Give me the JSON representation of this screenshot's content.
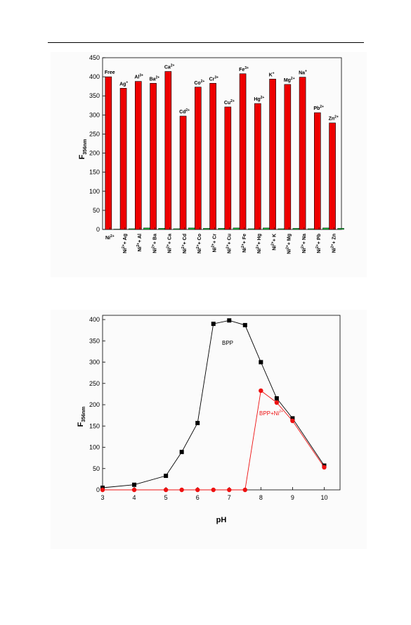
{
  "charts": {
    "bar": {
      "ylabel_main": "F",
      "ylabel_sub": "356nm",
      "yticks": [
        "0",
        "50",
        "100",
        "150",
        "200",
        "250",
        "300",
        "350",
        "400",
        "450"
      ]
    },
    "line": {
      "xlabel": "pH",
      "ylabel_main": "F",
      "ylabel_sub": "356nm",
      "xticks": [
        "3",
        "4",
        "5",
        "6",
        "7",
        "8",
        "9",
        "10"
      ],
      "yticks": [
        "0",
        "50",
        "100",
        "150",
        "200",
        "250",
        "300",
        "350",
        "400"
      ],
      "bpp_label": "BPP",
      "bppni_label_base": "BPP+Ni",
      "bppni_label_sup": "2+"
    }
  },
  "chart_data": [
    {
      "type": "bar",
      "ylim": [
        0,
        450
      ],
      "colors": {
        "ion": "#ee0000",
        "ni": "#11aa33"
      },
      "ion_labels": [
        {
          "b": "Free",
          "s": ""
        },
        {
          "b": "Ag",
          "s": "+"
        },
        {
          "b": "Al",
          "s": "3+"
        },
        {
          "b": "Ba",
          "s": "2+"
        },
        {
          "b": "Ca",
          "s": "2+"
        },
        {
          "b": "Cd",
          "s": "2+"
        },
        {
          "b": "Co",
          "s": "2+"
        },
        {
          "b": "Cr",
          "s": "3+"
        },
        {
          "b": "Cu",
          "s": "2+"
        },
        {
          "b": "Fe",
          "s": "3+"
        },
        {
          "b": "Hg",
          "s": "2+"
        },
        {
          "b": "K",
          "s": "+"
        },
        {
          "b": "Mg",
          "s": "2+"
        },
        {
          "b": "Na",
          "s": "+"
        },
        {
          "b": "Pb",
          "s": "2+"
        },
        {
          "b": "Zn",
          "s": "2+"
        }
      ],
      "ion_values": [
        400,
        370,
        388,
        383,
        414,
        297,
        373,
        383,
        321,
        408,
        330,
        394,
        380,
        399,
        306,
        279
      ],
      "ni_labels": [
        {
          "a": "Ni",
          "s": "2+",
          "c": ""
        },
        {
          "a": "Ni",
          "s": "2+",
          "c": "+ Ag"
        },
        {
          "a": "Ni",
          "s": "2+",
          "c": "+ Al"
        },
        {
          "a": "Ni",
          "s": "2+",
          "c": "+ Ba"
        },
        {
          "a": "Ni",
          "s": "2+",
          "c": "+ Ca"
        },
        {
          "a": "Ni",
          "s": "2+",
          "c": "+ Cd"
        },
        {
          "a": "Ni",
          "s": "2+",
          "c": "+ Co"
        },
        {
          "a": "Ni",
          "s": "2+",
          "c": "+ Cr"
        },
        {
          "a": "Ni",
          "s": "2+",
          "c": "+ Cu"
        },
        {
          "a": "Ni",
          "s": "2+",
          "c": "+ Fe"
        },
        {
          "a": "Ni",
          "s": "2+",
          "c": "+ Hg"
        },
        {
          "a": "Ni",
          "s": "2+",
          "c": "+ K"
        },
        {
          "a": "Ni",
          "s": "2+",
          "c": "+ Mg"
        },
        {
          "a": "Ni",
          "s": "2+",
          "c": "+ Na"
        },
        {
          "a": "Ni",
          "s": "2+",
          "c": "+ Pb"
        },
        {
          "a": "Ni",
          "s": "2+",
          "c": "+ Zn"
        }
      ],
      "ni_values": [
        1,
        2,
        4,
        3,
        2,
        4,
        3,
        3,
        4,
        2,
        4,
        2,
        3,
        2,
        4,
        3
      ]
    },
    {
      "type": "line",
      "xlim": [
        3,
        10.5
      ],
      "ylim": [
        0,
        410
      ],
      "series": [
        {
          "color": "#000000",
          "marker": "square",
          "x": [
            3,
            4,
            5,
            5.5,
            6,
            6.5,
            7,
            7.5,
            8,
            8.5,
            9,
            10
          ],
          "y": [
            5,
            12,
            33,
            89,
            157,
            390,
            398,
            387,
            300,
            215,
            168,
            57
          ]
        },
        {
          "color": "#ee1111",
          "marker": "circle",
          "x": [
            3,
            4,
            5,
            5.5,
            6,
            6.5,
            7,
            7.5,
            8,
            8.5,
            9,
            10
          ],
          "y": [
            0,
            0,
            0,
            0,
            0,
            0,
            0,
            0,
            233,
            205,
            162,
            53
          ]
        }
      ]
    }
  ]
}
